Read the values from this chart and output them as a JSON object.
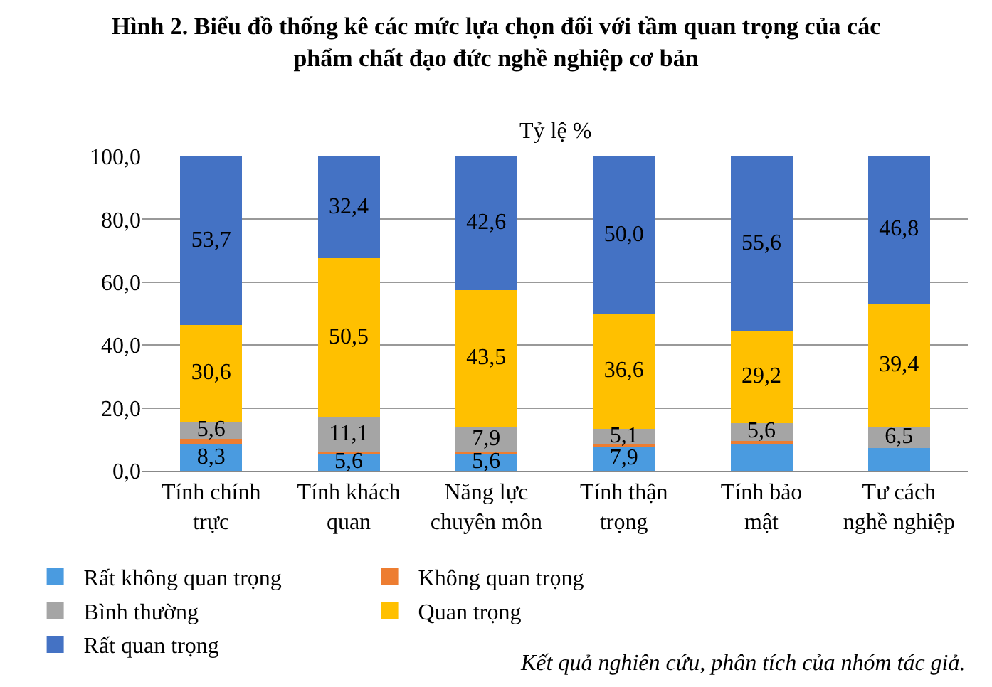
{
  "chart_data": {
    "type": "bar",
    "stacked": true,
    "title": "Hình 2. Biểu đồ thống kê các mức lựa chọn đối với tầm quan trọng của các phẩm chất đạo đức nghề nghiệp cơ bản",
    "subtitle": "Tỷ lệ %",
    "categories": [
      "Tính chính trực",
      "Tính khách quan",
      "Năng lực chuyên môn",
      "Tính thận trọng",
      "Tính bảo mật",
      "Tư cách nghề nghiệp"
    ],
    "series": [
      {
        "name": "Rất không quan trọng",
        "color": "#4a9be0",
        "values": [
          8.3,
          5.6,
          5.6,
          7.9,
          8.3,
          7.3
        ],
        "value_labels": [
          "8,3",
          "5,6",
          "5,6",
          "7,9",
          null,
          null
        ]
      },
      {
        "name": "Không quan trọng",
        "color": "#ed7d31",
        "values": [
          1.8,
          0.4,
          0.4,
          0.4,
          1.3,
          0
        ],
        "value_labels": [
          null,
          null,
          null,
          null,
          null,
          null
        ]
      },
      {
        "name": "Bình thường",
        "color": "#a5a5a5",
        "values": [
          5.6,
          11.1,
          7.9,
          5.1,
          5.6,
          6.5
        ],
        "value_labels": [
          "5,6",
          "11,1",
          "7,9",
          "5,1",
          "5,6",
          "6,5"
        ]
      },
      {
        "name": "Quan trọng",
        "color": "#ffc000",
        "values": [
          30.6,
          50.5,
          43.5,
          36.6,
          29.2,
          39.4
        ],
        "value_labels": [
          "30,6",
          "50,5",
          "43,5",
          "36,6",
          "29,2",
          "39,4"
        ]
      },
      {
        "name": "Rất quan trọng",
        "color": "#4472c4",
        "values": [
          53.7,
          32.4,
          42.6,
          50.0,
          55.6,
          46.8
        ],
        "value_labels": [
          "53,7",
          "32,4",
          "42,6",
          "50,0",
          "55,6",
          "46,8"
        ]
      }
    ],
    "ylim": [
      0,
      100
    ],
    "yticks": [
      {
        "value": 0,
        "label": "0,0"
      },
      {
        "value": 20,
        "label": "20,0"
      },
      {
        "value": 40,
        "label": "40,0"
      },
      {
        "value": 60,
        "label": "60,0"
      },
      {
        "value": 80,
        "label": "80,0"
      },
      {
        "value": 100,
        "label": "100,0"
      }
    ],
    "grid": "y",
    "legend": "bottom",
    "annotations": [
      "Kết quả nghiên cứu, phân tích của nhóm tác giả."
    ]
  }
}
